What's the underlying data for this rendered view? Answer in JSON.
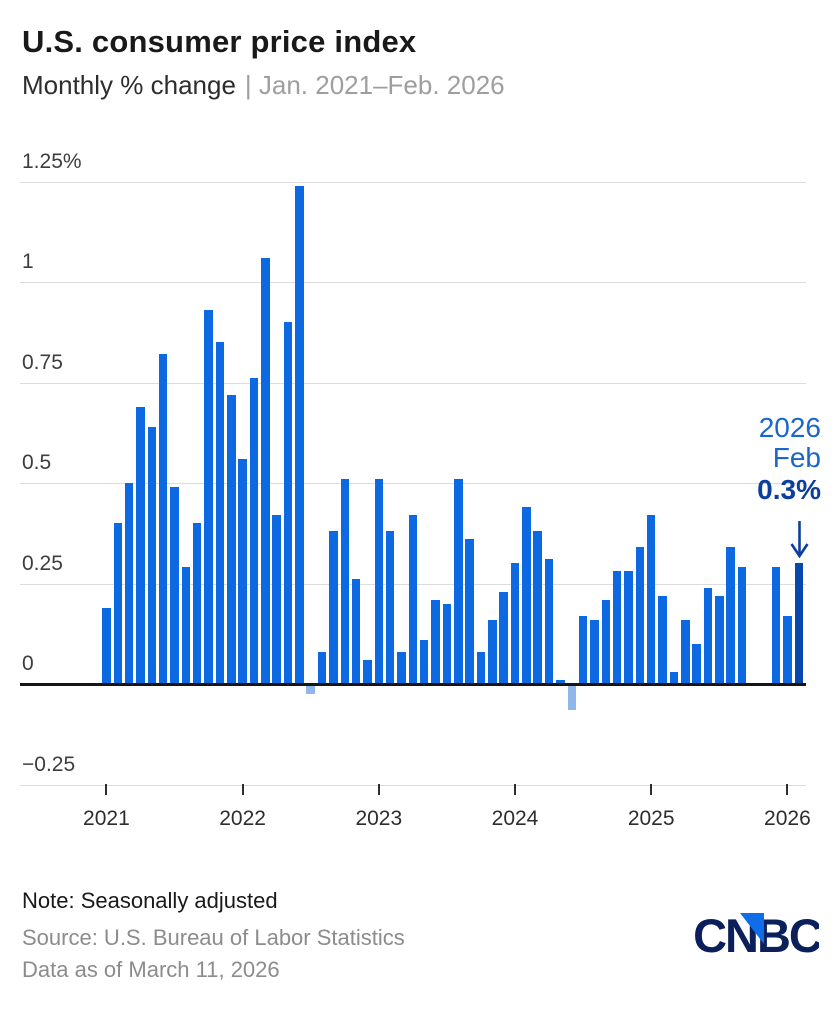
{
  "header": {
    "title": "U.S. consumer price index",
    "subtitle_measure": "Monthly % change",
    "subtitle_range": "| Jan. 2021–Feb. 2026"
  },
  "chart_data": {
    "type": "bar",
    "title": "U.S. consumer price index",
    "ylabel": "Monthly % change",
    "x_start": "Jan 2021",
    "x_end": "Feb 2026",
    "grid": "horizontal",
    "ylim": [
      -0.25,
      1.25
    ],
    "y_axis": [
      {
        "label": "1.25%",
        "value": 1.25
      },
      {
        "label": "1",
        "value": 1
      },
      {
        "label": "0.75",
        "value": 0.75
      },
      {
        "label": "0.5",
        "value": 0.5
      },
      {
        "label": "0.25",
        "value": 0.25
      },
      {
        "label": "0",
        "value": 0
      },
      {
        "label": "−0.25",
        "value": -0.25
      }
    ],
    "x_year_labels": [
      "2021",
      "2022",
      "2023",
      "2024",
      "2025",
      "2026"
    ],
    "series": [
      {
        "name": "CPI monthly % change, seasonally adjusted",
        "values_by_year": {
          "2021": [
            0.19,
            0.4,
            0.5,
            0.69,
            0.64,
            0.82,
            0.49,
            0.29,
            0.4,
            0.93,
            0.85,
            0.72
          ],
          "2022": [
            0.56,
            0.76,
            1.06,
            0.42,
            0.9,
            1.24,
            -0.02,
            0.08,
            0.38,
            0.51,
            0.26,
            0.06
          ],
          "2023": [
            0.51,
            0.38,
            0.08,
            0.42,
            0.11,
            0.21,
            0.2,
            0.51,
            0.36,
            0.08,
            0.16,
            0.23
          ],
          "2024": [
            0.3,
            0.44,
            0.38,
            0.31,
            0.01,
            -0.06,
            0.17,
            0.16,
            0.21,
            0.28,
            0.28,
            0.34
          ],
          "2025": [
            0.42,
            0.22,
            0.03,
            0.16,
            0.1,
            0.24,
            0.22,
            0.34,
            0.29,
            null,
            null,
            0.29
          ],
          "2026": [
            0.17,
            0.3
          ]
        }
      }
    ],
    "annotation": {
      "year": "2026",
      "month": "Feb",
      "value": "0.3%"
    },
    "colors": {
      "bar": "#0c69e1",
      "bar_negative": "#8fb7ea",
      "bar_highlight": "#0847ab",
      "annotation_label": "#1a66cb",
      "annotation_value": "#0c3f9d",
      "zero_line": "#161616",
      "gridline": "#dcdcdc"
    }
  },
  "footer": {
    "note": "Note: Seasonally adjusted",
    "source": "Source: U.S. Bureau of Labor Statistics",
    "data_as_of": "Data as of March 11, 2026",
    "logo_text": "CNBC"
  }
}
